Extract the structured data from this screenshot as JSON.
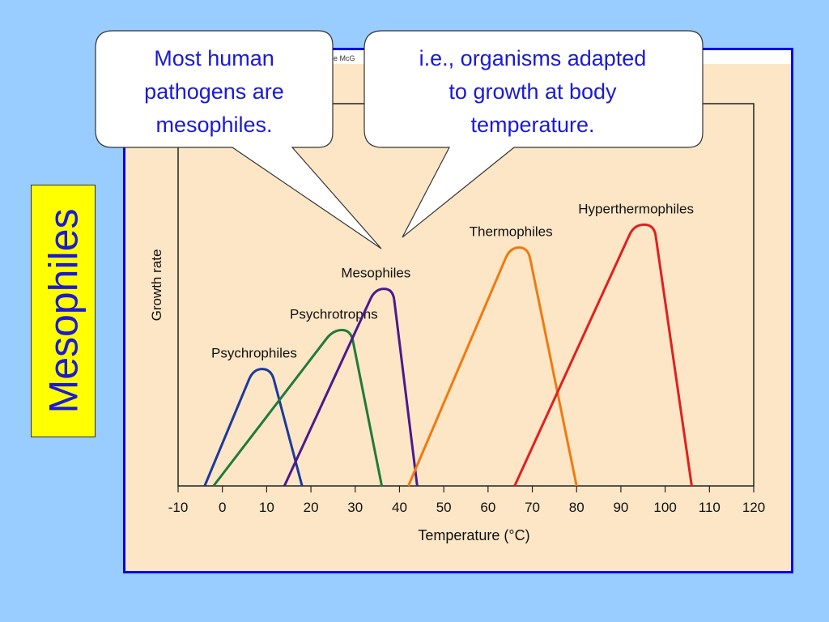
{
  "side_title": "Mesophiles",
  "copyright_fragment": "he McG",
  "callouts": [
    {
      "lines": [
        "Most human",
        "pathogens are",
        "mesophiles."
      ]
    },
    {
      "lines": [
        "i.e., organisms adapted",
        "to growth at body",
        "temperature."
      ]
    }
  ],
  "colors": {
    "background": "#99ccff",
    "panel": "#fce6c6",
    "frame": "#0000ee",
    "side_title_bg": "#ffff00",
    "side_title_text": "#1a1ad6",
    "callout_text": "#1a1ad6"
  },
  "chart_data": {
    "type": "line",
    "xlabel": "Temperature (°C)",
    "ylabel": "Growth rate",
    "xlim": [
      -10,
      120
    ],
    "x_ticks": [
      "-10",
      "0",
      "10",
      "20",
      "30",
      "40",
      "50",
      "60",
      "70",
      "80",
      "90",
      "100",
      "110",
      "120"
    ],
    "grid": false,
    "series": [
      {
        "name": "Psychrophiles",
        "color": "#1a3a9c",
        "x": [
          -4,
          7,
          11,
          18
        ],
        "y": [
          0,
          0.51,
          0.51,
          0
        ]
      },
      {
        "name": "Psychrotrophs",
        "color": "#1f7a3a",
        "x": [
          -2,
          25,
          29,
          36
        ],
        "y": [
          0,
          0.68,
          0.68,
          0
        ]
      },
      {
        "name": "Mesophiles",
        "color": "#4a1a8c",
        "x": [
          14,
          34.5,
          38.5,
          44
        ],
        "y": [
          0,
          0.86,
          0.86,
          0
        ]
      },
      {
        "name": "Thermophiles",
        "color": "#f07a10",
        "x": [
          42,
          65,
          69,
          80
        ],
        "y": [
          0,
          1.04,
          1.04,
          0
        ]
      },
      {
        "name": "Hyperthermophiles",
        "color": "#e02020",
        "x": [
          66,
          93,
          97.5,
          106
        ],
        "y": [
          0,
          1.14,
          1.14,
          0
        ]
      }
    ]
  }
}
